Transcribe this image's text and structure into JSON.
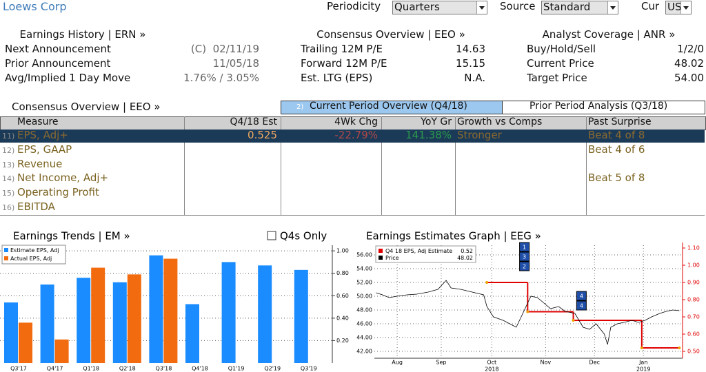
{
  "header": {
    "title": "Loews Corp",
    "controls": [
      {
        "label": "Periodicity",
        "value": "Quarters"
      },
      {
        "label": "Source",
        "value": "Standard"
      },
      {
        "label": "Cur",
        "value": "USD"
      }
    ]
  },
  "panels": [
    {
      "title": "Earnings History | ERN »",
      "rows": [
        [
          "Next Announcement",
          "(C)  02/11/19"
        ],
        [
          "Prior Announcement",
          "11/05/18"
        ],
        [
          "Avg/Implied 1 Day Move",
          "1.76% / 3.05%"
        ]
      ]
    },
    {
      "title": "Consensus Overview | EEO »",
      "rows": [
        [
          "Trailing 12M P/E",
          "14.63"
        ],
        [
          "Forward 12M P/E",
          "15.15"
        ],
        [
          "Est. LTG (EPS)",
          "N.A."
        ]
      ]
    },
    {
      "title": "Analyst Coverage | ANR »",
      "rows": [
        [
          "Buy/Hold/Sell",
          "1/2/0"
        ],
        [
          "Current Price",
          "48.02"
        ],
        [
          "Target Price",
          "54.00"
        ]
      ]
    }
  ],
  "table": {
    "title": "Consensus Overview | EEO »",
    "tabs": [
      {
        "number": "2)",
        "label": "Current Period Overview (Q4/18)"
      },
      {
        "label": "Prior Period Analysis (Q3/18)"
      }
    ],
    "columns": [
      "Measure",
      "Q4/18 Est",
      "4Wk Chg",
      "YoY Gr",
      "Growth vs Comps",
      "Past Surprise"
    ],
    "rows": [
      {
        "number": "11)",
        "cells": [
          "EPS, Adj+",
          "0.525",
          "-22.79%",
          "141.38%",
          "Stronger",
          "Beat 4 of 8"
        ]
      },
      {
        "number": "12)",
        "cells": [
          "EPS, GAAP",
          null,
          null,
          null,
          null,
          "Beat 4 of 6"
        ]
      },
      {
        "number": "13)",
        "cells": [
          "Revenue",
          null,
          null,
          null,
          null,
          null
        ]
      },
      {
        "number": "14)",
        "cells": [
          "Net Income, Adj+",
          null,
          null,
          null,
          null,
          "Beat 5 of 8"
        ]
      },
      {
        "number": "15)",
        "cells": [
          "Operating Profit",
          null,
          null,
          null,
          null,
          null
        ]
      },
      {
        "number": "16)",
        "cells": [
          "EBITDA",
          null,
          null,
          null,
          null,
          null
        ]
      }
    ]
  },
  "chart_data": [
    {
      "type": "bar",
      "title": "Earnings Trends | EM »",
      "checkbox": "Q4s Only",
      "categories": [
        "Q3'17",
        "Q4'17",
        "Q1'18",
        "Q2'18",
        "Q3'18",
        "Q4'18",
        "Q1'19",
        "Q2'19",
        "Q3'19"
      ],
      "series": [
        {
          "name": "Estimate EPS, Adj",
          "color": "#1a8cff",
          "values": [
            0.54,
            0.7,
            0.76,
            0.72,
            0.96,
            0.525,
            0.9,
            0.87,
            0.83
          ]
        },
        {
          "name": "Actual EPS, Adj",
          "color": "#f26b0f",
          "values": [
            0.36,
            0.21,
            0.85,
            0.79,
            0.93,
            null,
            null,
            null,
            null
          ]
        }
      ],
      "ylim": [
        0,
        1.05
      ],
      "yticks": [
        {
          "value": 0.2,
          "label": "0.20"
        },
        {
          "value": 0.4,
          "label": "0.40"
        },
        {
          "value": 0.6,
          "label": "0.60"
        },
        {
          "value": 0.8,
          "label": "0.80"
        },
        {
          "value": 1.0,
          "label": "1.00"
        }
      ],
      "grid": true
    },
    {
      "type": "line",
      "title": "Earnings Estimates Graph | EEG »",
      "series": [
        {
          "name": "Q4 18 EPS, Adj Estimate",
          "color": "#e00000",
          "axis": "y2",
          "step": true,
          "last": 0.52,
          "x": [
            69,
            94,
            122,
            164,
            187
          ],
          "values": [
            0.9,
            0.73,
            0.68,
            0.52,
            0.52
          ]
        },
        {
          "name": "Price",
          "color": "#000000",
          "last": 48.02,
          "x": [
            1,
            5,
            9,
            14,
            20,
            26,
            33,
            39,
            44,
            47,
            53,
            60,
            67,
            69,
            73,
            79,
            83,
            87,
            90,
            94,
            96,
            100,
            104,
            108,
            113,
            117,
            123,
            128,
            132,
            136,
            141,
            143,
            145,
            149,
            153,
            158,
            162,
            166,
            170,
            175,
            179,
            183,
            187
          ],
          "values": [
            50.5,
            50.2,
            49.8,
            50.0,
            50.2,
            50.3,
            50.6,
            51.0,
            52.3,
            51.2,
            51.0,
            50.6,
            50.2,
            48.5,
            47.0,
            46.5,
            46.0,
            45.5,
            47.0,
            49.0,
            50.0,
            49.8,
            49.0,
            48.2,
            48.5,
            47.8,
            47.5,
            45.5,
            45.2,
            46.0,
            44.5,
            43.0,
            45.5,
            46.0,
            46.2,
            46.5,
            46.2,
            46.5,
            47.0,
            47.5,
            47.8,
            48.0,
            47.9
          ]
        }
      ],
      "xlim": [
        0,
        189
      ],
      "xticks": [
        {
          "value": 14,
          "label": "Aug"
        },
        {
          "value": 41,
          "label": "Sep"
        },
        {
          "value": 72,
          "label": "Oct"
        },
        {
          "value": 105,
          "label": "Nov"
        },
        {
          "value": 135,
          "label": "Dec"
        },
        {
          "value": 165,
          "label": "Jan"
        }
      ],
      "year_labels": [
        {
          "value": 72,
          "label": "2018"
        },
        {
          "value": 165,
          "label": "2019"
        }
      ],
      "ylim": [
        41,
        57.4
      ],
      "yticks": [
        {
          "value": 42,
          "label": "42.00"
        },
        {
          "value": 44,
          "label": "44.00"
        },
        {
          "value": 46,
          "label": "46.00"
        },
        {
          "value": 48,
          "label": "48.00"
        },
        {
          "value": 50,
          "label": "50.00"
        },
        {
          "value": 52,
          "label": "52.00"
        },
        {
          "value": 54,
          "label": "54.00"
        },
        {
          "value": 56,
          "label": "56.00"
        }
      ],
      "y2lim": [
        0.46,
        1.116
      ],
      "y2ticks": [
        {
          "value": 0.5,
          "label": "0.50"
        },
        {
          "value": 0.6,
          "label": "0.60"
        },
        {
          "value": 0.7,
          "label": "0.70"
        },
        {
          "value": 0.8,
          "label": "0.80"
        },
        {
          "value": 0.9,
          "label": "0.90"
        },
        {
          "value": 1.0,
          "label": "1.00"
        },
        {
          "value": 1.1,
          "label": "1.10"
        }
      ],
      "annotations": [
        {
          "x": 92,
          "labels": [
            "1",
            "3",
            "2"
          ]
        },
        {
          "x": 127,
          "labels": [
            "4",
            "4"
          ]
        }
      ],
      "grid": true
    }
  ]
}
